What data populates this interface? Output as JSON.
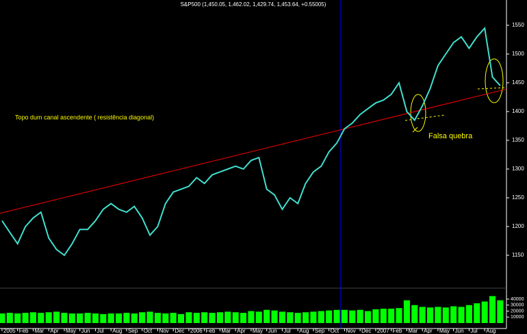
{
  "chart_data": [
    {
      "type": "line",
      "title": "S&P500 (1,450.05, 1,462.02, 1,429.74, 1,453.64, +0.55005)",
      "annotations": [
        "Topo dum canal ascendente ( resistência diagonal)",
        "Falsa quebra"
      ],
      "x": [
        0,
        0.5,
        1,
        1.5,
        2,
        2.5,
        3,
        3.5,
        4,
        4.5,
        5,
        5.5,
        6,
        6.5,
        7,
        7.5,
        8,
        8.5,
        9,
        9.5,
        10,
        10.5,
        11,
        11.5,
        12,
        12.5,
        13,
        13.5,
        14,
        14.5,
        15,
        15.5,
        16,
        16.5,
        17,
        17.5,
        18,
        18.5,
        19,
        19.5,
        20,
        20.5,
        21,
        21.5,
        22,
        22.5,
        23,
        23.5,
        24,
        24.5,
        25,
        25.5,
        26,
        26.5,
        27,
        27.5,
        28,
        28.5,
        29,
        29.5,
        30,
        30.5,
        31,
        31.5,
        32
      ],
      "values": [
        1210,
        1190,
        1170,
        1200,
        1215,
        1225,
        1180,
        1160,
        1150,
        1170,
        1195,
        1195,
        1210,
        1230,
        1240,
        1230,
        1225,
        1235,
        1215,
        1185,
        1200,
        1240,
        1260,
        1265,
        1270,
        1285,
        1275,
        1290,
        1295,
        1300,
        1305,
        1300,
        1315,
        1320,
        1265,
        1255,
        1230,
        1250,
        1240,
        1275,
        1295,
        1305,
        1330,
        1345,
        1370,
        1380,
        1395,
        1405,
        1415,
        1420,
        1430,
        1450,
        1400,
        1385,
        1410,
        1440,
        1480,
        1500,
        1520,
        1530,
        1510,
        1530,
        1545,
        1460,
        1445
      ],
      "color": "#40e0d0",
      "trendline": {
        "x": [
          -0.13,
          32.4
        ],
        "values": [
          1223,
          1439
        ],
        "color": "#ff0000"
      },
      "marker_x": 21.76,
      "marker_color": "#0000ff",
      "xlim": [
        -0.13,
        32.4
      ],
      "ylim": [
        1094,
        1594
      ],
      "yticks": [
        1150,
        1200,
        1250,
        1300,
        1350,
        1400,
        1450,
        1500,
        1550
      ],
      "xticks": [
        {
          "value": 0,
          "label": "2005"
        },
        {
          "value": 1,
          "label": "Feb"
        },
        {
          "value": 2,
          "label": "Mar"
        },
        {
          "value": 3,
          "label": "Apr"
        },
        {
          "value": 4,
          "label": "May"
        },
        {
          "value": 5,
          "label": "Jun"
        },
        {
          "value": 6,
          "label": "Jul"
        },
        {
          "value": 7,
          "label": "Aug"
        },
        {
          "value": 8,
          "label": "Sep"
        },
        {
          "value": 9,
          "label": "Oct"
        },
        {
          "value": 10,
          "label": "Nov"
        },
        {
          "value": 11,
          "label": "Dec"
        },
        {
          "value": 12,
          "label": "2006"
        },
        {
          "value": 13,
          "label": "Feb"
        },
        {
          "value": 14,
          "label": "Mar"
        },
        {
          "value": 15,
          "label": "Apr"
        },
        {
          "value": 16,
          "label": "May"
        },
        {
          "value": 17,
          "label": "Jun"
        },
        {
          "value": 18,
          "label": "Jul"
        },
        {
          "value": 19,
          "label": "Aug"
        },
        {
          "value": 20,
          "label": "Sep"
        },
        {
          "value": 21,
          "label": "Oct"
        },
        {
          "value": 22,
          "label": "Nov"
        },
        {
          "value": 23,
          "label": "Dec"
        },
        {
          "value": 24,
          "label": "2007"
        },
        {
          "value": 25,
          "label": "Feb"
        },
        {
          "value": 26,
          "label": "Mar"
        },
        {
          "value": 27,
          "label": "Apr"
        },
        {
          "value": 28,
          "label": "May"
        },
        {
          "value": 29,
          "label": "Jun"
        },
        {
          "value": 30,
          "label": "Jul"
        },
        {
          "value": 31,
          "label": "Aug"
        }
      ]
    },
    {
      "type": "bar",
      "x": [
        0,
        0.5,
        1,
        1.5,
        2,
        2.5,
        3,
        3.5,
        4,
        4.5,
        5,
        5.5,
        6,
        6.5,
        7,
        7.5,
        8,
        8.5,
        9,
        9.5,
        10,
        10.5,
        11,
        11.5,
        12,
        12.5,
        13,
        13.5,
        14,
        14.5,
        15,
        15.5,
        16,
        16.5,
        17,
        17.5,
        18,
        18.5,
        19,
        19.5,
        20,
        20.5,
        21,
        21.5,
        22,
        22.5,
        23,
        23.5,
        24,
        24.5,
        25,
        25.5,
        26,
        26.5,
        27,
        27.5,
        28,
        28.5,
        29,
        29.5,
        30,
        30.5,
        31,
        31.5,
        32
      ],
      "values": [
        16000,
        17000,
        16000,
        17000,
        18000,
        17000,
        18000,
        19000,
        17000,
        16000,
        16000,
        17000,
        16000,
        15000,
        16000,
        16000,
        17000,
        16000,
        18000,
        19000,
        17000,
        16000,
        17000,
        15000,
        18000,
        17000,
        18000,
        17000,
        18000,
        19000,
        18000,
        17000,
        20000,
        19000,
        22000,
        21000,
        19000,
        18000,
        17000,
        18000,
        19000,
        20000,
        21000,
        22000,
        22000,
        21000,
        22000,
        20000,
        23000,
        24000,
        24000,
        25000,
        38000,
        30000,
        27000,
        26000,
        27000,
        26000,
        28000,
        27000,
        30000,
        33000,
        36000,
        45000,
        38000
      ],
      "color": "#00ff00",
      "xlim": [
        -0.13,
        32.4
      ],
      "ylim": [
        0,
        56000
      ],
      "yticks": [
        10000,
        20000,
        30000,
        40000
      ]
    }
  ]
}
